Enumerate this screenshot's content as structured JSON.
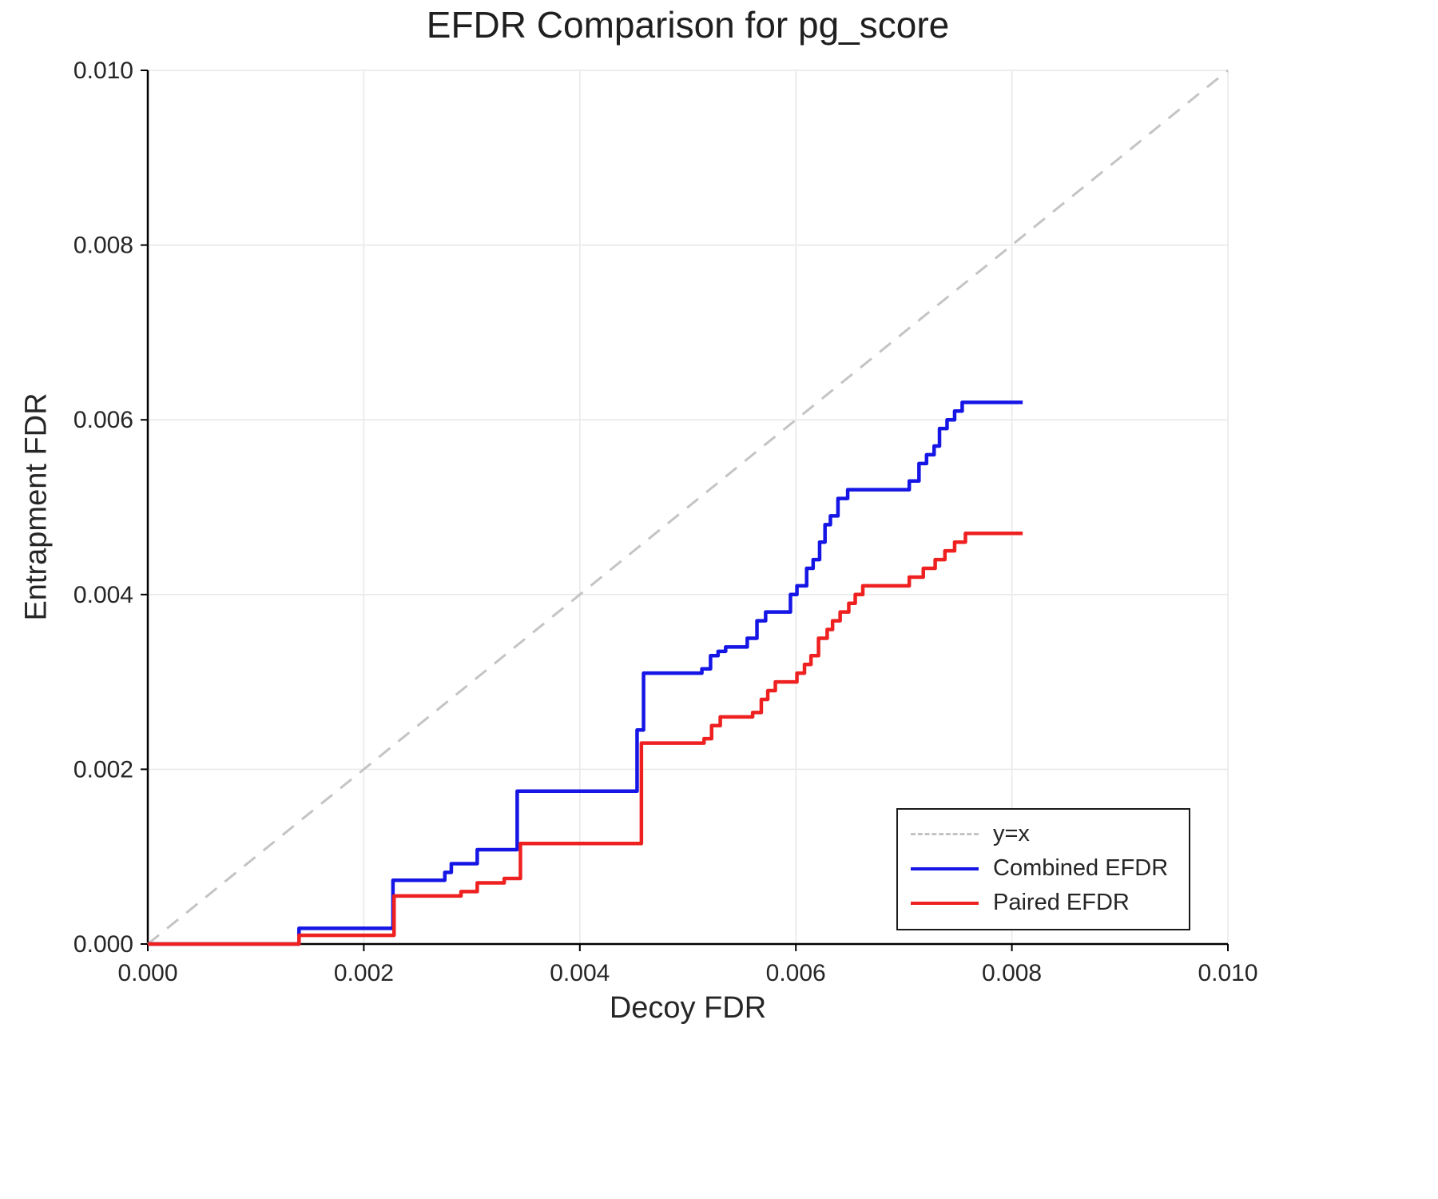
{
  "chart_data": {
    "type": "line",
    "title": "EFDR Comparison for pg_score",
    "xlabel": "Decoy FDR",
    "ylabel": "Entrapment FDR",
    "xlim": [
      0.0,
      0.01
    ],
    "ylim": [
      0.0,
      0.01
    ],
    "xticks": [
      0.0,
      0.002,
      0.004,
      0.006,
      0.008,
      0.01
    ],
    "yticks": [
      0.0,
      0.002,
      0.004,
      0.006,
      0.008,
      0.01
    ],
    "xtick_labels": [
      "0.000",
      "0.002",
      "0.004",
      "0.006",
      "0.008",
      "0.010"
    ],
    "ytick_labels": [
      "0.000",
      "0.002",
      "0.004",
      "0.006",
      "0.008",
      "0.010"
    ],
    "grid": true,
    "legend_position": "lower right",
    "colors": {
      "grid": "#e8e8e8",
      "axis": "#000000",
      "text": "#262626",
      "background": "#ffffff"
    },
    "series": [
      {
        "name": "y=x",
        "type": "line",
        "dash": true,
        "step": false,
        "color": "#c4c4c4",
        "width": 3,
        "x": [
          0.0,
          0.01
        ],
        "y": [
          0.0,
          0.01
        ]
      },
      {
        "name": "Combined EFDR",
        "type": "step",
        "dash": false,
        "step": true,
        "color": "#1515e6",
        "width": 4.5,
        "x": [
          0.0,
          0.0014,
          0.00227,
          0.00275,
          0.00281,
          0.00305,
          0.00342,
          0.00453,
          0.00459,
          0.00513,
          0.00521,
          0.00528,
          0.00535,
          0.00555,
          0.00564,
          0.00572,
          0.00595,
          0.00601,
          0.0061,
          0.00616,
          0.00622,
          0.00627,
          0.00632,
          0.00639,
          0.00648,
          0.00705,
          0.00714,
          0.00721,
          0.00728,
          0.00733,
          0.0074,
          0.00747,
          0.00754,
          0.0081
        ],
        "y": [
          0.0,
          0.00018,
          0.00073,
          0.00082,
          0.00092,
          0.00108,
          0.00175,
          0.00245,
          0.0031,
          0.00315,
          0.0033,
          0.00335,
          0.0034,
          0.0035,
          0.0037,
          0.0038,
          0.004,
          0.0041,
          0.0043,
          0.0044,
          0.0046,
          0.0048,
          0.0049,
          0.0051,
          0.0052,
          0.0053,
          0.0055,
          0.0056,
          0.0057,
          0.0059,
          0.006,
          0.0061,
          0.0062,
          0.0062
        ]
      },
      {
        "name": "Paired EFDR",
        "type": "step",
        "dash": false,
        "step": true,
        "color": "#ee2020",
        "width": 4.5,
        "x": [
          0.0,
          0.0014,
          0.00228,
          0.0029,
          0.00305,
          0.0033,
          0.00345,
          0.00457,
          0.00515,
          0.00522,
          0.0053,
          0.0056,
          0.00568,
          0.00574,
          0.00581,
          0.00601,
          0.00608,
          0.00614,
          0.00621,
          0.00629,
          0.00634,
          0.00641,
          0.00649,
          0.00655,
          0.00662,
          0.00705,
          0.00718,
          0.00729,
          0.00738,
          0.00747,
          0.00757,
          0.0081
        ],
        "y": [
          0.0,
          0.0001,
          0.00055,
          0.0006,
          0.0007,
          0.00075,
          0.00115,
          0.0023,
          0.00235,
          0.0025,
          0.0026,
          0.00265,
          0.0028,
          0.0029,
          0.003,
          0.0031,
          0.0032,
          0.0033,
          0.0035,
          0.0036,
          0.0037,
          0.0038,
          0.0039,
          0.004,
          0.0041,
          0.0042,
          0.0043,
          0.0044,
          0.0045,
          0.0046,
          0.0047,
          0.0047
        ]
      }
    ]
  }
}
